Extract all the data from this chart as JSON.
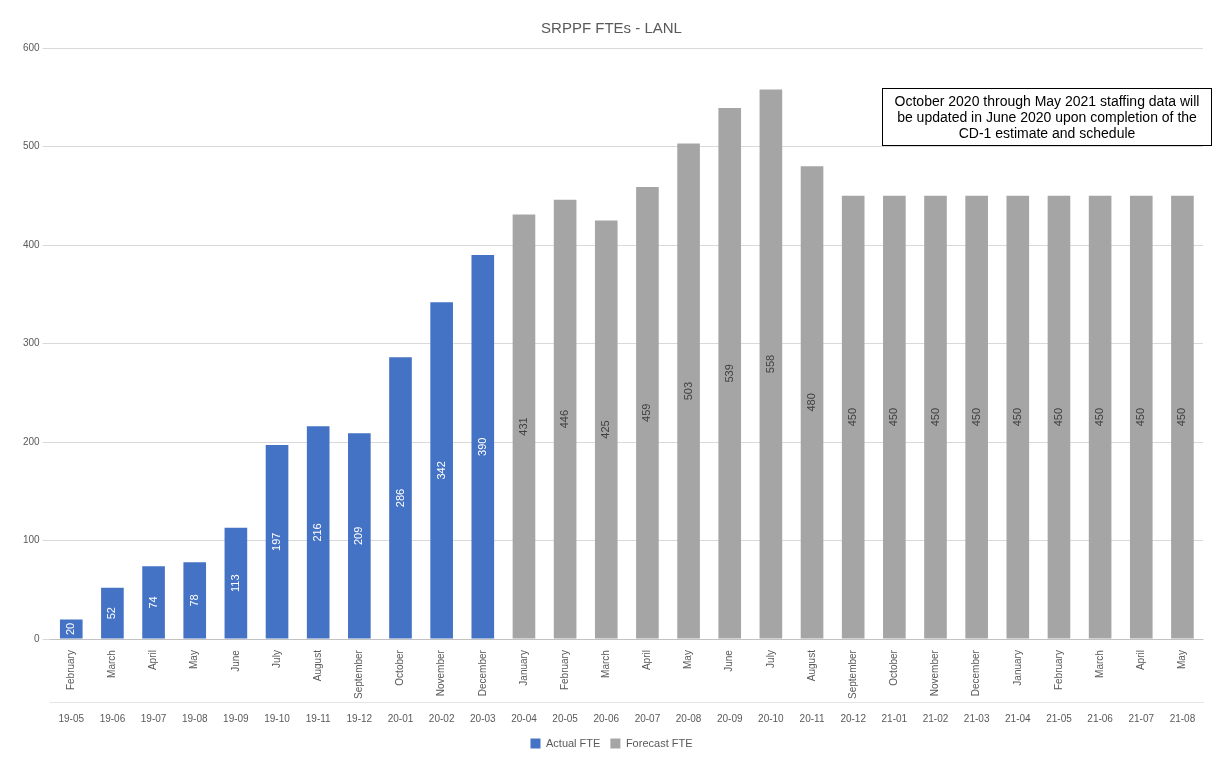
{
  "chart_data": {
    "type": "bar",
    "title": "SRPPF FTEs - LANL",
    "categories": [
      "February\n19-05",
      "March\n19-06",
      "April\n19-07",
      "May\n19-08",
      "June\n19-09",
      "July\n19-10",
      "August\n19-11",
      "September\n19-12",
      "October\n20-01",
      "November\n20-02",
      "December\n20-03",
      "January\n20-04",
      "February\n20-05",
      "March\n20-06",
      "April\n20-07",
      "May\n20-08",
      "June\n20-09",
      "July\n20-10",
      "August\n20-11",
      "September\n20-12",
      "October\n21-01",
      "November\n21-02",
      "December\n21-03",
      "January\n21-04",
      "February\n21-05",
      "March\n21-06",
      "April\n21-07",
      "May\n21-08"
    ],
    "series": [
      {
        "name": "Actual FTE",
        "color": "#4472c4",
        "values": [
          20,
          52,
          74,
          78,
          113,
          197,
          216,
          209,
          286,
          342,
          390,
          null,
          null,
          null,
          null,
          null,
          null,
          null,
          null,
          null,
          null,
          null,
          null,
          null,
          null,
          null,
          null,
          null
        ]
      },
      {
        "name": "Forecast FTE",
        "color": "#a5a5a5",
        "values": [
          null,
          null,
          null,
          null,
          null,
          null,
          null,
          null,
          null,
          null,
          null,
          431,
          446,
          425,
          459,
          503,
          539,
          558,
          480,
          450,
          450,
          450,
          450,
          450,
          450,
          450,
          450,
          450
        ]
      }
    ],
    "ylim": [
      0,
      600
    ],
    "yticks": [
      0,
      100,
      200,
      300,
      400,
      500,
      600
    ],
    "grid": "y",
    "legend": "bottom",
    "data_labels": true,
    "annotations": [
      "October 2020 through May 2021 staffing data will be updated in June 2020 upon completion of the CD-1 estimate and schedule"
    ]
  }
}
